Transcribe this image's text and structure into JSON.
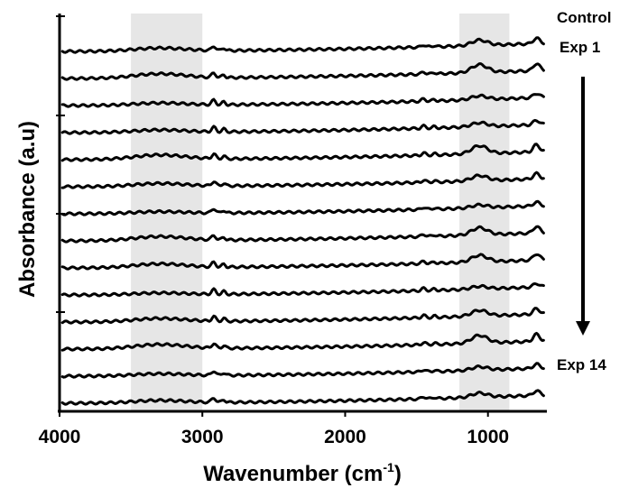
{
  "chart_data": {
    "type": "line",
    "title": "",
    "xlabel": "Wavenumber (cm",
    "xlabel_sup": "-1",
    "xlabel_suffix": ")",
    "ylabel": "Absorbance (a.u)",
    "xlim": [
      4000,
      600
    ],
    "x_reversed": true,
    "x_ticks": [
      4000,
      3000,
      2000,
      1000
    ],
    "x_tick_labels": [
      "4000",
      "3000",
      "2000",
      "1000"
    ],
    "y_ticks_count": 4,
    "grid": false,
    "shaded_regions": [
      {
        "from": 3500,
        "to": 3000
      },
      {
        "from": 1200,
        "to": 850
      }
    ],
    "series": [
      {
        "name": "Control",
        "offset": 13
      },
      {
        "name": "Exp 1",
        "offset": 12
      },
      {
        "name": "",
        "offset": 11
      },
      {
        "name": "",
        "offset": 10
      },
      {
        "name": "",
        "offset": 9
      },
      {
        "name": "",
        "offset": 8
      },
      {
        "name": "",
        "offset": 7
      },
      {
        "name": "",
        "offset": 6
      },
      {
        "name": "",
        "offset": 5
      },
      {
        "name": "",
        "offset": 4
      },
      {
        "name": "",
        "offset": 3
      },
      {
        "name": "",
        "offset": 2
      },
      {
        "name": "",
        "offset": 1
      },
      {
        "name": "Exp 14",
        "offset": 0
      }
    ],
    "annotations": [
      "Control",
      "Exp 1",
      "Exp 14"
    ]
  }
}
